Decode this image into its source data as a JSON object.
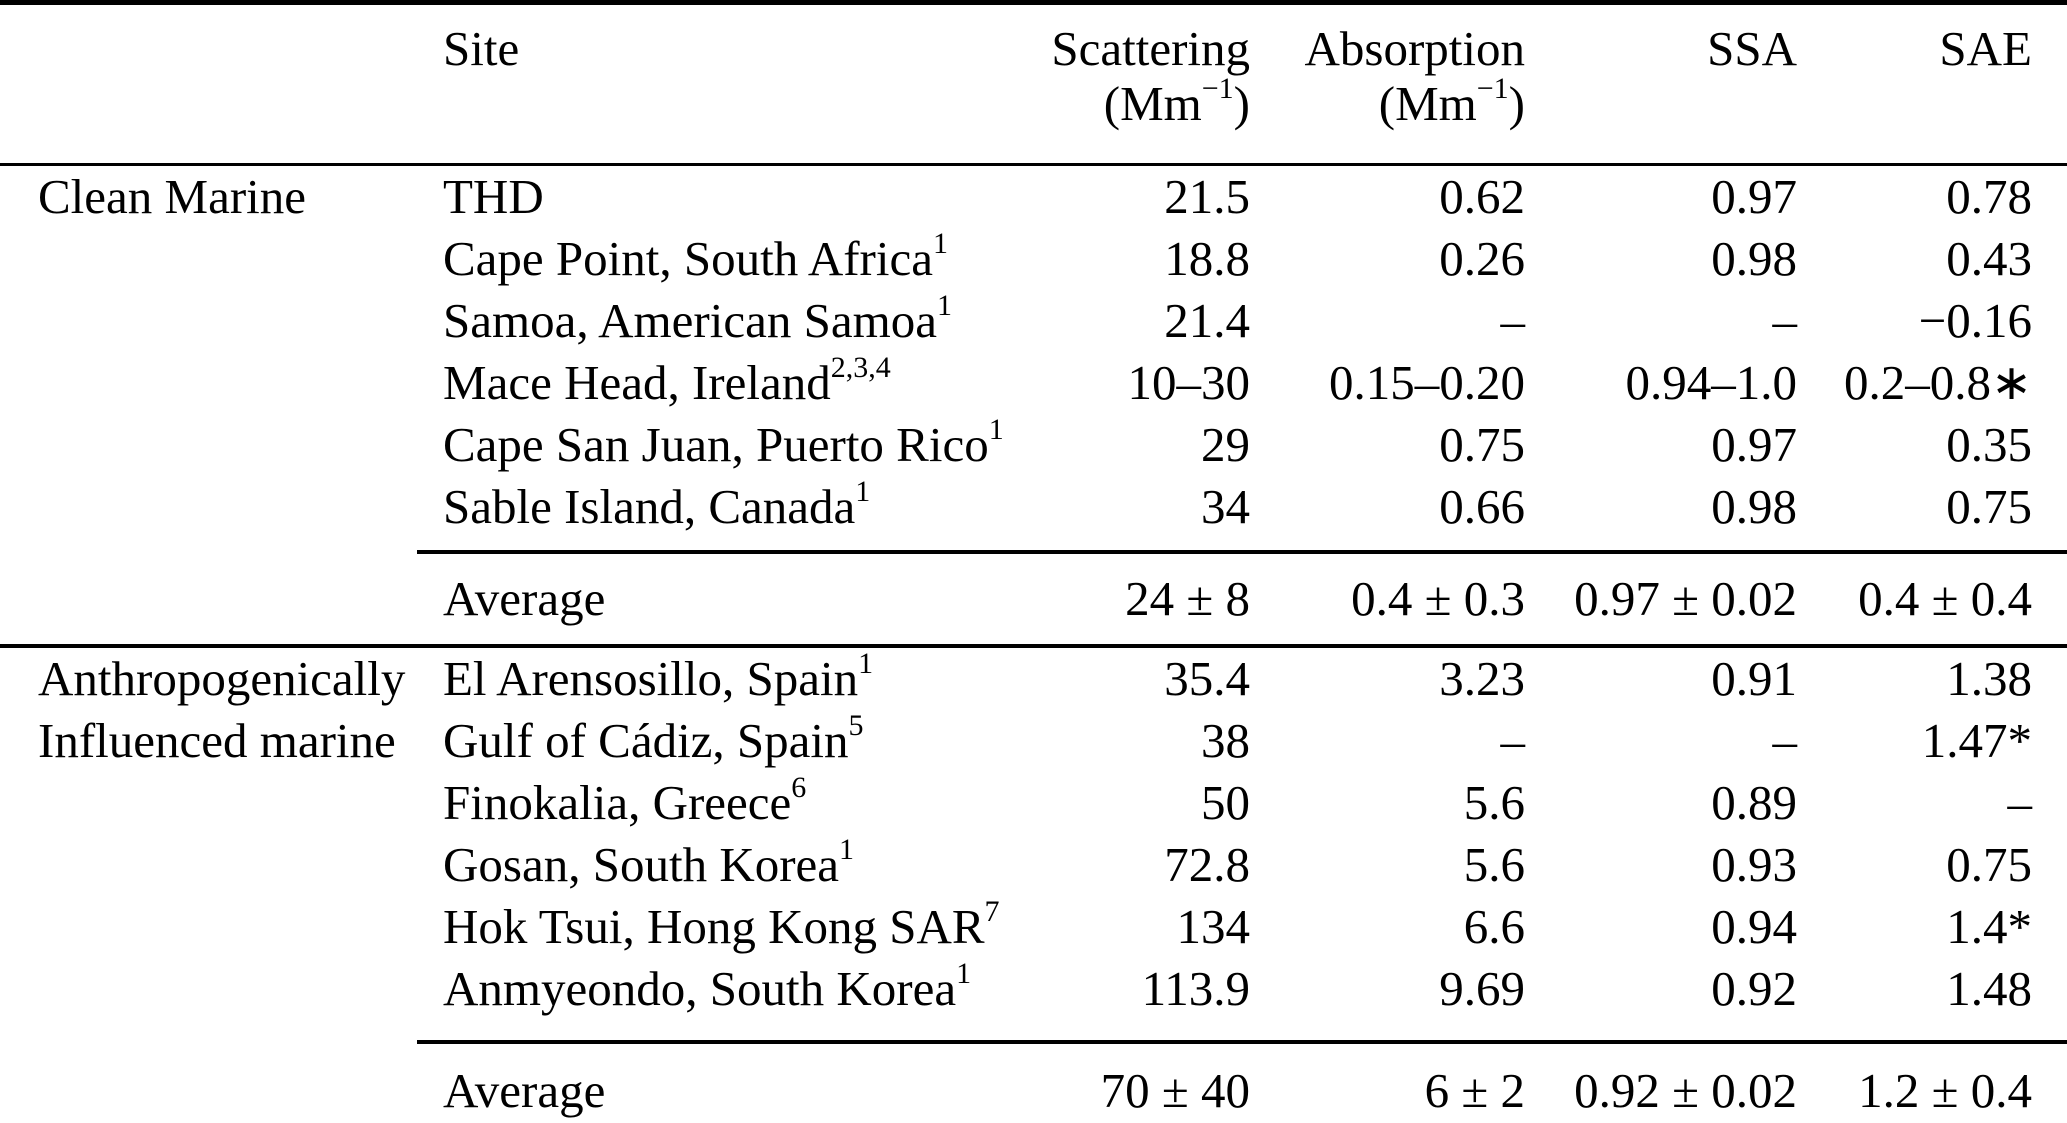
{
  "table": {
    "headers": {
      "site": "Site",
      "scattering_label": "Scattering",
      "absorption_label": "Absorption",
      "unit": {
        "pre": "(Mm",
        "sup": "−1",
        "post": ")"
      },
      "ssa": "SSA",
      "sae": "SAE"
    },
    "sections": [
      {
        "group_lines": [
          "Clean Marine"
        ],
        "rows": [
          {
            "site": "THD",
            "sup": "",
            "scattering": "21.5",
            "absorption": "0.62",
            "ssa": "0.97",
            "sae": "0.78"
          },
          {
            "site": "Cape Point, South Africa",
            "sup": "1",
            "scattering": "18.8",
            "absorption": "0.26",
            "ssa": "0.98",
            "sae": "0.43"
          },
          {
            "site": "Samoa, American Samoa",
            "sup": "1",
            "scattering": "21.4",
            "absorption": "–",
            "ssa": "–",
            "sae": "−0.16"
          },
          {
            "site": "Mace Head, Ireland",
            "sup": "2,3,4",
            "scattering": "10–30",
            "absorption": "0.15–0.20",
            "ssa": "0.94–1.0",
            "sae": "0.2–0.8∗"
          },
          {
            "site": "Cape San Juan, Puerto Rico",
            "sup": "1",
            "scattering": "29",
            "absorption": "0.75",
            "ssa": "0.97",
            "sae": "0.35"
          },
          {
            "site": "Sable Island, Canada",
            "sup": "1",
            "scattering": "34",
            "absorption": "0.66",
            "ssa": "0.98",
            "sae": "0.75"
          }
        ],
        "average": {
          "label": "Average",
          "scattering": "24 ± 8",
          "absorption": "0.4 ± 0.3",
          "ssa": "0.97 ± 0.02",
          "sae": "0.4 ± 0.4"
        }
      },
      {
        "group_lines": [
          "Anthropogenically",
          "Influenced marine"
        ],
        "rows": [
          {
            "site": "El Arensosillo, Spain",
            "sup": "1",
            "scattering": "35.4",
            "absorption": "3.23",
            "ssa": "0.91",
            "sae": "1.38"
          },
          {
            "site": "Gulf of Cádiz, Spain",
            "sup": "5",
            "scattering": "38",
            "absorption": "–",
            "ssa": "–",
            "sae": "1.47*"
          },
          {
            "site": "Finokalia, Greece",
            "sup": "6",
            "scattering": "50",
            "absorption": "5.6",
            "ssa": "0.89",
            "sae": "–"
          },
          {
            "site": "Gosan, South Korea",
            "sup": "1",
            "scattering": "72.8",
            "absorption": "5.6",
            "ssa": "0.93",
            "sae": "0.75"
          },
          {
            "site": "Hok Tsui, Hong Kong SAR",
            "sup": "7",
            "scattering": "134",
            "absorption": "6.6",
            "ssa": "0.94",
            "sae": "1.4*"
          },
          {
            "site": "Anmyeondo, South Korea",
            "sup": "1",
            "scattering": "113.9",
            "absorption": "9.69",
            "ssa": "0.92",
            "sae": "1.48"
          }
        ],
        "average": {
          "label": "Average",
          "scattering": "70 ± 40",
          "absorption": "6 ± 2",
          "ssa": "0.92 ± 0.02",
          "sae": "1.2 ± 0.4"
        }
      }
    ]
  }
}
